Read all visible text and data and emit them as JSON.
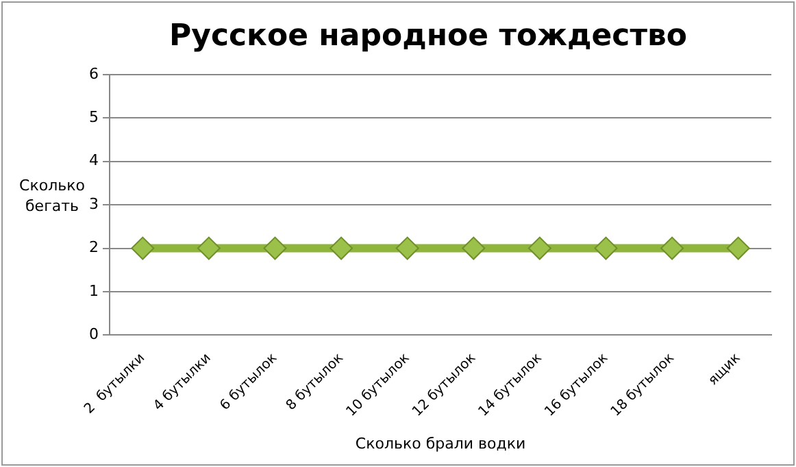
{
  "chart_data": {
    "type": "line",
    "title": "Русское народное тождество",
    "xlabel": "Сколько брали водки",
    "ylabel": "Сколько бегать",
    "categories": [
      "2  бутылки",
      "4 бутылки",
      "6 бутылок",
      "8 бутылок",
      "10 бутылок",
      "12 бутылок",
      "14 бутылок",
      "16 бутылок",
      "18 бутылок",
      "ящик"
    ],
    "series": [
      {
        "color": "#8fb53c",
        "values": [
          2,
          2,
          2,
          2,
          2,
          2,
          2,
          2,
          2,
          2
        ]
      }
    ],
    "ylim": [
      0,
      6
    ],
    "yticks": [
      0,
      1,
      2,
      3,
      4,
      5,
      6
    ],
    "grid": "y",
    "legend": false,
    "marker": "diamond",
    "line_style": "solid"
  }
}
